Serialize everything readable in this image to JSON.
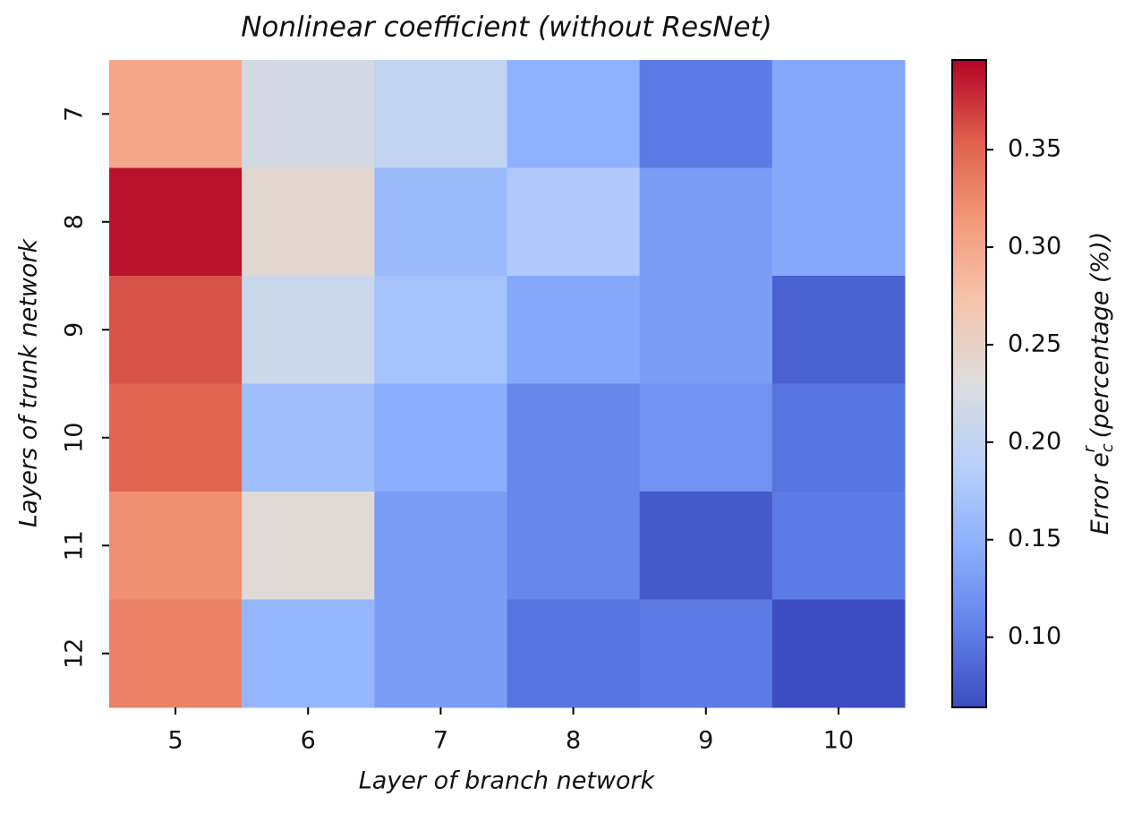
{
  "chart_data": {
    "type": "heatmap",
    "title": "Nonlinear coefficient (without ResNet)",
    "x_label": "Layer of branch network",
    "y_label": "Layers of trunk network",
    "colorbar_label": {
      "text": "Error e",
      "sub": "c",
      "sup": "r",
      "suffix": " (percentage (%))"
    },
    "x_categories": [
      "5",
      "6",
      "7",
      "8",
      "9",
      "10"
    ],
    "y_categories": [
      "7",
      "8",
      "9",
      "10",
      "11",
      "12"
    ],
    "values": [
      [
        0.3,
        0.22,
        0.2,
        0.15,
        0.1,
        0.14
      ],
      [
        0.39,
        0.24,
        0.16,
        0.18,
        0.13,
        0.14
      ],
      [
        0.36,
        0.21,
        0.17,
        0.14,
        0.13,
        0.08
      ],
      [
        0.35,
        0.165,
        0.145,
        0.11,
        0.12,
        0.095
      ],
      [
        0.32,
        0.235,
        0.13,
        0.11,
        0.075,
        0.1
      ],
      [
        0.33,
        0.155,
        0.13,
        0.095,
        0.1,
        0.065
      ]
    ],
    "clim": [
      0.064,
      0.396
    ],
    "cticks": [
      {
        "value": 0.1,
        "label": "0.10"
      },
      {
        "value": 0.15,
        "label": "0.15"
      },
      {
        "value": 0.2,
        "label": "0.20"
      },
      {
        "value": 0.25,
        "label": "0.25"
      },
      {
        "value": 0.3,
        "label": "0.30"
      },
      {
        "value": 0.35,
        "label": "0.35"
      }
    ],
    "colormap": [
      "#3b4cc0",
      "#6282ea",
      "#8db0fe",
      "#b8d0f9",
      "#dddddd",
      "#f5c4ad",
      "#f49a7b",
      "#de604d",
      "#b40426"
    ]
  }
}
